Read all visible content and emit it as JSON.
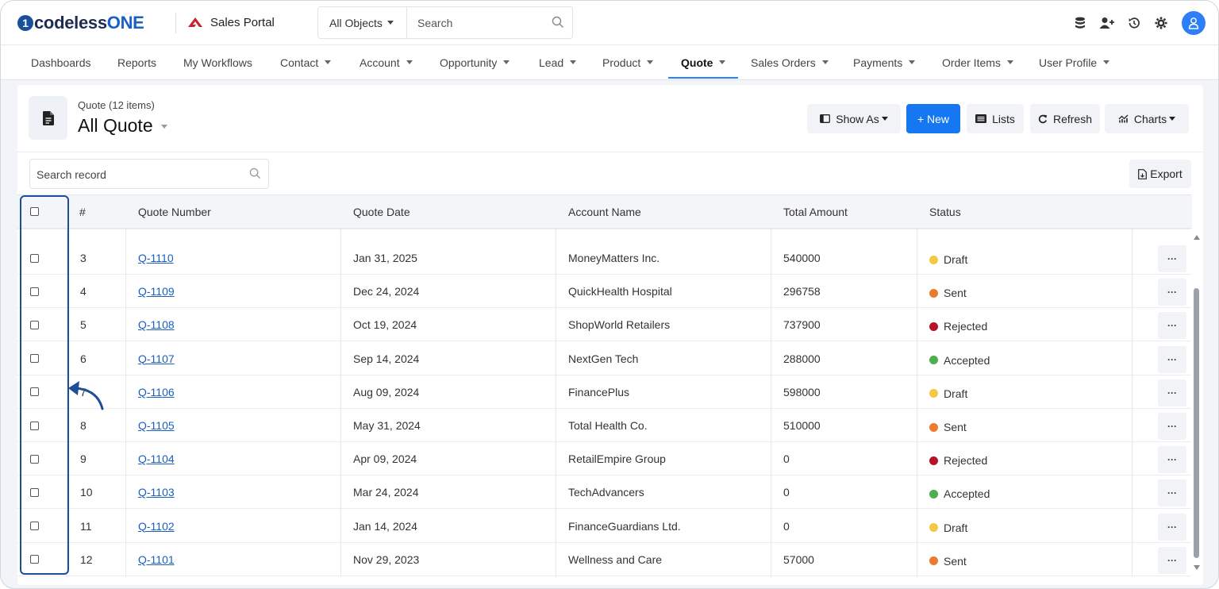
{
  "brand": {
    "logo_mark": "1",
    "logo_text_1": "codeless",
    "logo_text_2": "ONE",
    "app_name": "Sales Portal"
  },
  "topbar": {
    "object_select": "All Objects",
    "search_placeholder": "Search",
    "icons": [
      "database-icon",
      "add-user-icon",
      "history-icon",
      "gear-icon",
      "user-avatar-icon"
    ]
  },
  "nav": {
    "items": [
      {
        "label": "Dashboards",
        "dropdown": false
      },
      {
        "label": "Reports",
        "dropdown": false
      },
      {
        "label": "My Workflows",
        "dropdown": false
      },
      {
        "label": "Contact",
        "dropdown": true
      },
      {
        "label": "Account",
        "dropdown": true
      },
      {
        "label": "Opportunity",
        "dropdown": true
      },
      {
        "label": "Lead",
        "dropdown": true
      },
      {
        "label": "Product",
        "dropdown": true
      },
      {
        "label": "Quote",
        "dropdown": true,
        "active": true
      },
      {
        "label": "Sales Orders",
        "dropdown": true
      },
      {
        "label": "Payments",
        "dropdown": true
      },
      {
        "label": "Order Items",
        "dropdown": true
      },
      {
        "label": "User Profile",
        "dropdown": true
      }
    ]
  },
  "page": {
    "subtitle": "Quote (12 items)",
    "title": "All Quote"
  },
  "toolbar": {
    "show_as": "Show As",
    "new": "+ New",
    "lists": "Lists",
    "refresh": "Refresh",
    "charts": "Charts",
    "export": "Export",
    "search_placeholder": "Search record"
  },
  "table": {
    "columns": [
      "#",
      "Quote Number",
      "Quote Date",
      "Account Name",
      "Total Amount",
      "Status"
    ],
    "rows": [
      {
        "num": "3",
        "quote": "Q-1110",
        "date": "Jan 31, 2025",
        "account": "MoneyMatters Inc.",
        "amount": "540000",
        "status": "Draft"
      },
      {
        "num": "4",
        "quote": "Q-1109",
        "date": "Dec 24, 2024",
        "account": "QuickHealth Hospital",
        "amount": "296758",
        "status": "Sent"
      },
      {
        "num": "5",
        "quote": "Q-1108",
        "date": "Oct 19, 2024",
        "account": "ShopWorld Retailers",
        "amount": "737900",
        "status": "Rejected"
      },
      {
        "num": "6",
        "quote": "Q-1107",
        "date": "Sep 14, 2024",
        "account": "NextGen Tech",
        "amount": "288000",
        "status": "Accepted"
      },
      {
        "num": "7",
        "quote": "Q-1106",
        "date": "Aug 09, 2024",
        "account": "FinancePlus",
        "amount": "598000",
        "status": "Draft"
      },
      {
        "num": "8",
        "quote": "Q-1105",
        "date": "May 31, 2024",
        "account": "Total Health Co.",
        "amount": "510000",
        "status": "Sent"
      },
      {
        "num": "9",
        "quote": "Q-1104",
        "date": "Apr 09, 2024",
        "account": "RetailEmpire Group",
        "amount": "0",
        "status": "Rejected"
      },
      {
        "num": "10",
        "quote": "Q-1103",
        "date": "Mar 24, 2024",
        "account": "TechAdvancers",
        "amount": "0",
        "status": "Accepted"
      },
      {
        "num": "11",
        "quote": "Q-1102",
        "date": "Jan 14, 2024",
        "account": "FinanceGuardians Ltd.",
        "amount": "0",
        "status": "Draft"
      },
      {
        "num": "12",
        "quote": "Q-1101",
        "date": "Nov 29, 2023",
        "account": "Wellness and Care",
        "amount": "57000",
        "status": "Sent"
      }
    ],
    "more_label": "···"
  },
  "status_colors": {
    "Draft": "#f5c842",
    "Sent": "#ec7a2c",
    "Rejected": "#b5132a",
    "Accepted": "#4caf50"
  },
  "colors": {
    "accent": "#1677f2",
    "brand": "#1d2c4f",
    "highlight": "#1d4e97"
  }
}
